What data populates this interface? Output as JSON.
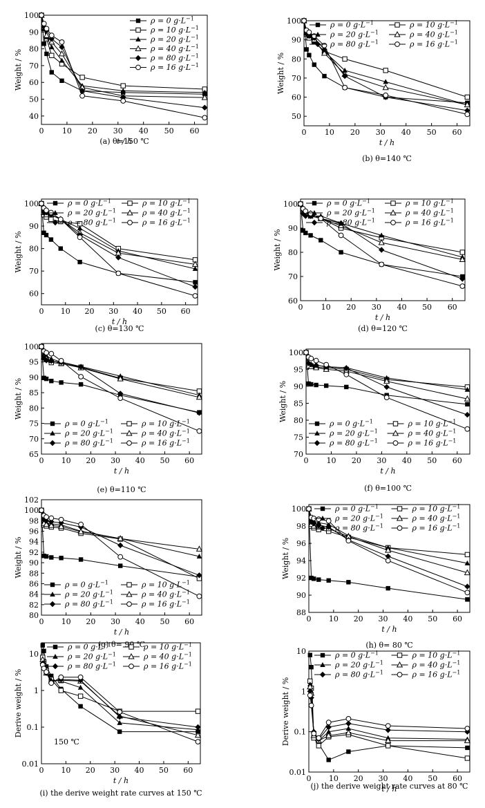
{
  "legend_labels": [
    {
      "rho": "ρ = 0 g·L",
      "sup": "−1"
    },
    {
      "rho": "ρ = 10 g·L",
      "sup": "−1"
    },
    {
      "rho": "ρ = 20 g·L",
      "sup": "−1"
    },
    {
      "rho": "ρ = 40 g·L",
      "sup": "−1"
    },
    {
      "rho": "ρ = 80 g·L",
      "sup": "−1"
    },
    {
      "rho": "ρ = 16 g·L",
      "sup": "−1"
    }
  ],
  "series_markers": [
    "square-filled",
    "square-open",
    "triangle-filled",
    "triangle-open",
    "diamond-filled",
    "circle-open"
  ],
  "chart_data": [
    {
      "id": "a",
      "type": "line",
      "caption": "(a) θ=150 ℃",
      "xlabel": "t / h",
      "ylabel": "Weight / %",
      "xlim": [
        0,
        65
      ],
      "ylim": [
        35,
        100
      ],
      "xticks": [
        0,
        10,
        20,
        30,
        40,
        50,
        60
      ],
      "yticks": [
        40,
        50,
        60,
        70,
        80,
        90,
        100
      ],
      "x": [
        0,
        1,
        2,
        4,
        8,
        16,
        32,
        64
      ],
      "legend_layout": "single",
      "legend_position": "top-right",
      "series": [
        {
          "values": [
            100,
            83,
            77,
            66,
            61,
            55,
            54,
            53
          ]
        },
        {
          "values": [
            100,
            92,
            86,
            76,
            71,
            63,
            58,
            56
          ]
        },
        {
          "values": [
            100,
            92,
            87,
            81,
            73,
            58,
            55,
            54
          ]
        },
        {
          "values": [
            100,
            93,
            88,
            84,
            77,
            57,
            52,
            51
          ]
        },
        {
          "values": [
            100,
            93,
            91,
            86,
            81,
            55,
            51,
            45
          ]
        },
        {
          "values": [
            100,
            95,
            92,
            88,
            84,
            52,
            49,
            39
          ]
        }
      ]
    },
    {
      "id": "b",
      "type": "line",
      "caption": "(b) θ=140 ℃",
      "xlabel": "t / h",
      "ylabel": "Weight / %",
      "xlim": [
        0,
        65
      ],
      "ylim": [
        45,
        100
      ],
      "xticks": [
        0,
        10,
        20,
        30,
        40,
        50,
        60
      ],
      "yticks": [
        50,
        60,
        70,
        80,
        90,
        100
      ],
      "x": [
        0,
        1,
        2,
        4,
        8,
        16,
        32,
        64
      ],
      "legend_layout": "double",
      "legend_position": "top-right",
      "series": [
        {
          "values": [
            100,
            85,
            82,
            77,
            71,
            65,
            60,
            57
          ]
        },
        {
          "values": [
            100,
            93,
            91,
            89,
            84,
            80,
            74,
            60
          ]
        },
        {
          "values": [
            100,
            94,
            92,
            89,
            84,
            74,
            68,
            56
          ]
        },
        {
          "values": [
            100,
            94,
            93,
            90,
            83,
            72,
            65,
            56
          ]
        },
        {
          "values": [
            100,
            93,
            92,
            91,
            85,
            71,
            60,
            53
          ]
        },
        {
          "values": [
            100,
            95,
            94,
            92,
            87,
            65,
            61,
            51
          ]
        }
      ]
    },
    {
      "id": "c",
      "type": "line",
      "caption": "(c) θ=130 ℃",
      "xlabel": "t / h",
      "ylabel": "Weight / %",
      "xlim": [
        0,
        65
      ],
      "ylim": [
        55,
        102
      ],
      "xticks": [
        0,
        10,
        20,
        30,
        40,
        50,
        60
      ],
      "yticks": [
        60,
        70,
        80,
        90,
        100
      ],
      "x": [
        0,
        1,
        2,
        4,
        8,
        16,
        32,
        64
      ],
      "legend_layout": "double",
      "legend_position": "top-right",
      "series": [
        {
          "values": [
            100,
            87,
            86,
            84,
            80,
            74,
            69,
            65
          ]
        },
        {
          "values": [
            100,
            95,
            94,
            93,
            92,
            91,
            80,
            75
          ]
        },
        {
          "values": [
            100,
            97,
            96,
            95,
            93,
            89,
            79,
            71
          ]
        },
        {
          "values": [
            100,
            96,
            95,
            95,
            93,
            87,
            78,
            73
          ]
        },
        {
          "values": [
            100,
            96,
            96,
            95,
            93,
            86,
            76,
            63
          ]
        },
        {
          "values": [
            100,
            98,
            97,
            96,
            93,
            85,
            69,
            59
          ]
        }
      ]
    },
    {
      "id": "d",
      "type": "line",
      "caption": "(d) θ=120 ℃",
      "xlabel": "t / h",
      "ylabel": "Weight / %",
      "xlim": [
        0,
        65
      ],
      "ylim": [
        60,
        102
      ],
      "xticks": [
        0,
        10,
        20,
        30,
        40,
        50,
        60
      ],
      "yticks": [
        60,
        70,
        80,
        90,
        100
      ],
      "x": [
        0,
        1,
        2,
        4,
        8,
        16,
        32,
        64
      ],
      "legend_layout": "double",
      "legend_position": "top-right",
      "series": [
        {
          "values": [
            100,
            89,
            88,
            87,
            85,
            80,
            75,
            70
          ]
        },
        {
          "values": [
            100,
            97,
            96,
            95,
            94,
            90,
            86,
            80
          ]
        },
        {
          "values": [
            100,
            97,
            96,
            95,
            95,
            92,
            87,
            78
          ]
        },
        {
          "values": [
            100,
            97,
            96,
            96,
            94,
            91,
            84,
            77
          ]
        },
        {
          "values": [
            100,
            96,
            95,
            95,
            94,
            92,
            81,
            69
          ]
        },
        {
          "values": [
            100,
            98,
            97,
            96,
            94,
            87,
            75,
            66
          ]
        }
      ]
    },
    {
      "id": "e",
      "type": "line",
      "caption": "(e) θ=110 ℃",
      "xlabel": "t / h",
      "ylabel": "Weight / %",
      "xlim": [
        0,
        65
      ],
      "ylim": [
        65,
        101
      ],
      "xticks": [
        0,
        10,
        20,
        30,
        40,
        50,
        60
      ],
      "yticks": [
        65,
        70,
        75,
        80,
        85,
        90,
        95,
        100
      ],
      "x": [
        0,
        1,
        2,
        4,
        8,
        16,
        32,
        64
      ],
      "legend_layout": "double",
      "legend_position": "bottom-left",
      "series": [
        {
          "values": [
            100,
            89.8,
            89.5,
            88.8,
            88.3,
            87.7,
            84.2,
            78.6
          ]
        },
        {
          "values": [
            100,
            96.5,
            95.8,
            94.8,
            94.5,
            93.3,
            89.7,
            85.5
          ]
        },
        {
          "values": [
            100,
            97.4,
            97.0,
            96.0,
            95.0,
            93.5,
            90.4,
            84.2
          ]
        },
        {
          "values": [
            100,
            96.6,
            96.1,
            95.5,
            94.5,
            93.1,
            89.5,
            83.5
          ]
        },
        {
          "values": [
            100,
            96.2,
            95.5,
            95.3,
            94.9,
            93.4,
            84.7,
            78.4
          ]
        },
        {
          "values": [
            100,
            98.5,
            98.0,
            97.7,
            95.4,
            90.2,
            83.2,
            72.5
          ]
        }
      ]
    },
    {
      "id": "f",
      "type": "line",
      "caption": "(f) θ=100 ℃",
      "xlabel": "t / h",
      "ylabel": "Weight / %",
      "xlim": [
        0,
        65
      ],
      "ylim": [
        70,
        101
      ],
      "xticks": [
        0,
        10,
        20,
        30,
        40,
        50,
        60
      ],
      "yticks": [
        70,
        75,
        80,
        85,
        90,
        95,
        100
      ],
      "x": [
        0,
        1,
        2,
        4,
        8,
        16,
        32,
        64
      ],
      "legend_layout": "double",
      "legend_position": "bottom-left",
      "series": [
        {
          "values": [
            100,
            90.8,
            90.6,
            90.4,
            90.2,
            89.8,
            87.4,
            84.7
          ]
        },
        {
          "values": [
            100,
            96.3,
            96.0,
            95.6,
            95.5,
            95.0,
            92.0,
            89.8
          ]
        },
        {
          "values": [
            100,
            97.0,
            96.5,
            96.2,
            95.8,
            95.5,
            92.5,
            89.0
          ]
        },
        {
          "values": [
            100,
            96.0,
            95.8,
            95.5,
            95.0,
            94.5,
            91.5,
            86.3
          ]
        },
        {
          "values": [
            100,
            96.8,
            96.4,
            96.2,
            95.8,
            95.4,
            89.8,
            81.6
          ]
        },
        {
          "values": [
            100,
            98.6,
            98.2,
            97.6,
            96.4,
            93.5,
            86.7,
            77.4
          ]
        }
      ]
    },
    {
      "id": "g",
      "type": "line",
      "caption": "(g) θ= 90 ℃",
      "xlabel": "t / h",
      "ylabel": "Weight / %",
      "xlim": [
        0,
        65
      ],
      "ylim": [
        80,
        102
      ],
      "xticks": [
        0,
        10,
        20,
        30,
        40,
        50,
        60
      ],
      "yticks": [
        80,
        82,
        84,
        86,
        88,
        90,
        92,
        94,
        96,
        98,
        100,
        102
      ],
      "x": [
        0,
        1,
        2,
        4,
        8,
        16,
        32,
        64
      ],
      "legend_layout": "double",
      "legend_position": "bottom-left",
      "series": [
        {
          "values": [
            100,
            91.3,
            91.2,
            91.0,
            90.9,
            90.6,
            89.4,
            87.3
          ]
        },
        {
          "values": [
            100,
            97.2,
            97.0,
            96.8,
            96.6,
            95.6,
            94.5,
            87.0
          ]
        },
        {
          "values": [
            100,
            97.8,
            97.6,
            97.4,
            97.2,
            96.0,
            94.6,
            91.2
          ]
        },
        {
          "values": [
            100,
            97.5,
            97.3,
            97.1,
            96.9,
            95.9,
            94.6,
            92.6
          ]
        },
        {
          "values": [
            100,
            98.3,
            98.0,
            97.8,
            97.6,
            96.8,
            93.3,
            87.6
          ]
        },
        {
          "values": [
            100,
            99.0,
            98.7,
            98.5,
            98.2,
            97.3,
            91.1,
            83.6
          ]
        }
      ]
    },
    {
      "id": "h",
      "type": "line",
      "caption": "(h) θ= 80 ℃",
      "xlabel": "t / h",
      "ylabel": "Weight / %",
      "xlim": [
        0,
        65
      ],
      "ylim": [
        88,
        100.5
      ],
      "xticks": [
        0,
        10,
        20,
        30,
        40,
        50,
        60
      ],
      "yticks": [
        88,
        90,
        92,
        94,
        96,
        98,
        100
      ],
      "x": [
        0,
        1,
        2,
        4,
        8,
        16,
        32,
        64
      ],
      "legend_layout": "double",
      "legend_position": "top-right",
      "series": [
        {
          "values": [
            100,
            92.0,
            91.9,
            91.8,
            91.7,
            91.5,
            90.8,
            89.5
          ]
        },
        {
          "values": [
            100,
            98.0,
            97.8,
            97.6,
            97.4,
            96.7,
            95.5,
            94.7
          ]
        },
        {
          "values": [
            100,
            98.8,
            98.6,
            98.4,
            98.2,
            96.9,
            95.5,
            93.7
          ]
        },
        {
          "values": [
            100,
            98.2,
            98.0,
            97.9,
            97.7,
            96.8,
            95.2,
            92.6
          ]
        },
        {
          "values": [
            100,
            98.5,
            98.3,
            98.1,
            97.9,
            96.4,
            94.5,
            91.0
          ]
        },
        {
          "values": [
            100,
            99.0,
            98.9,
            98.8,
            98.6,
            96.3,
            94.0,
            90.3
          ]
        }
      ]
    },
    {
      "id": "i",
      "type": "line",
      "caption": "(i) the derive weight rate curves at 150 ℃",
      "annotation": "150 ℃",
      "xlabel": "t / h",
      "ylabel": "Derive weight / %",
      "xlim": [
        0,
        65
      ],
      "ylim": [
        0.01,
        20
      ],
      "yscale": "log",
      "xticks": [
        0,
        10,
        20,
        30,
        40,
        50,
        60
      ],
      "yticks": [
        0.01,
        0.1,
        1,
        10
      ],
      "ytick_labels": [
        "0.01",
        "0.1",
        "1",
        "10"
      ],
      "x": [
        0.5,
        1,
        2,
        4,
        8,
        16,
        32,
        64
      ],
      "legend_layout": "double",
      "legend_position": "top-right",
      "series": [
        {
          "values": [
            17,
            12,
            4.5,
            2.5,
            1.1,
            0.37,
            0.075,
            0.075
          ]
        },
        {
          "values": [
            8,
            6,
            3.5,
            2.0,
            1.0,
            0.7,
            0.27,
            0.27
          ]
        },
        {
          "values": [
            6,
            5,
            3.3,
            1.9,
            1.8,
            1.2,
            0.13,
            0.085
          ]
        },
        {
          "values": [
            7,
            5.5,
            3.0,
            1.8,
            1.9,
            1.8,
            0.2,
            0.06
          ]
        },
        {
          "values": [
            5.5,
            4.5,
            3.0,
            1.7,
            2.0,
            1.9,
            0.19,
            0.1
          ]
        },
        {
          "values": [
            5,
            4,
            3.2,
            1.6,
            2.3,
            2.3,
            0.26,
            0.04
          ]
        }
      ]
    },
    {
      "id": "j",
      "type": "line",
      "caption": "(j) the derive weight rate curves at 80 ℃",
      "xlabel": "t / h",
      "ylabel": "Derive weight / %",
      "xlim": [
        0,
        65
      ],
      "ylim": [
        0.01,
        10
      ],
      "yscale": "log",
      "xticks": [
        0,
        10,
        20,
        30,
        40,
        50,
        60
      ],
      "yticks": [
        0.01,
        0.1,
        1,
        10
      ],
      "ytick_labels": [
        "0.01",
        "0.1",
        "1",
        "10"
      ],
      "x": [
        0.5,
        1,
        2,
        4,
        8,
        16,
        32,
        64
      ],
      "legend_layout": "double",
      "legend_position": "top-right",
      "series": [
        {
          "values": [
            8,
            4,
            0.07,
            0.05,
            0.02,
            0.032,
            0.045,
            0.04
          ]
        },
        {
          "values": [
            1.8,
            1.2,
            0.07,
            0.045,
            0.075,
            0.085,
            0.045,
            0.022
          ]
        },
        {
          "values": [
            1.5,
            1.0,
            0.09,
            0.06,
            0.1,
            0.12,
            0.07,
            0.065
          ]
        },
        {
          "values": [
            1.3,
            0.9,
            0.08,
            0.06,
            0.08,
            0.095,
            0.06,
            0.06
          ]
        },
        {
          "values": [
            1.0,
            0.7,
            0.1,
            0.065,
            0.13,
            0.16,
            0.11,
            0.1
          ]
        },
        {
          "values": [
            0.8,
            0.45,
            0.09,
            0.07,
            0.17,
            0.21,
            0.14,
            0.12
          ]
        }
      ]
    }
  ]
}
